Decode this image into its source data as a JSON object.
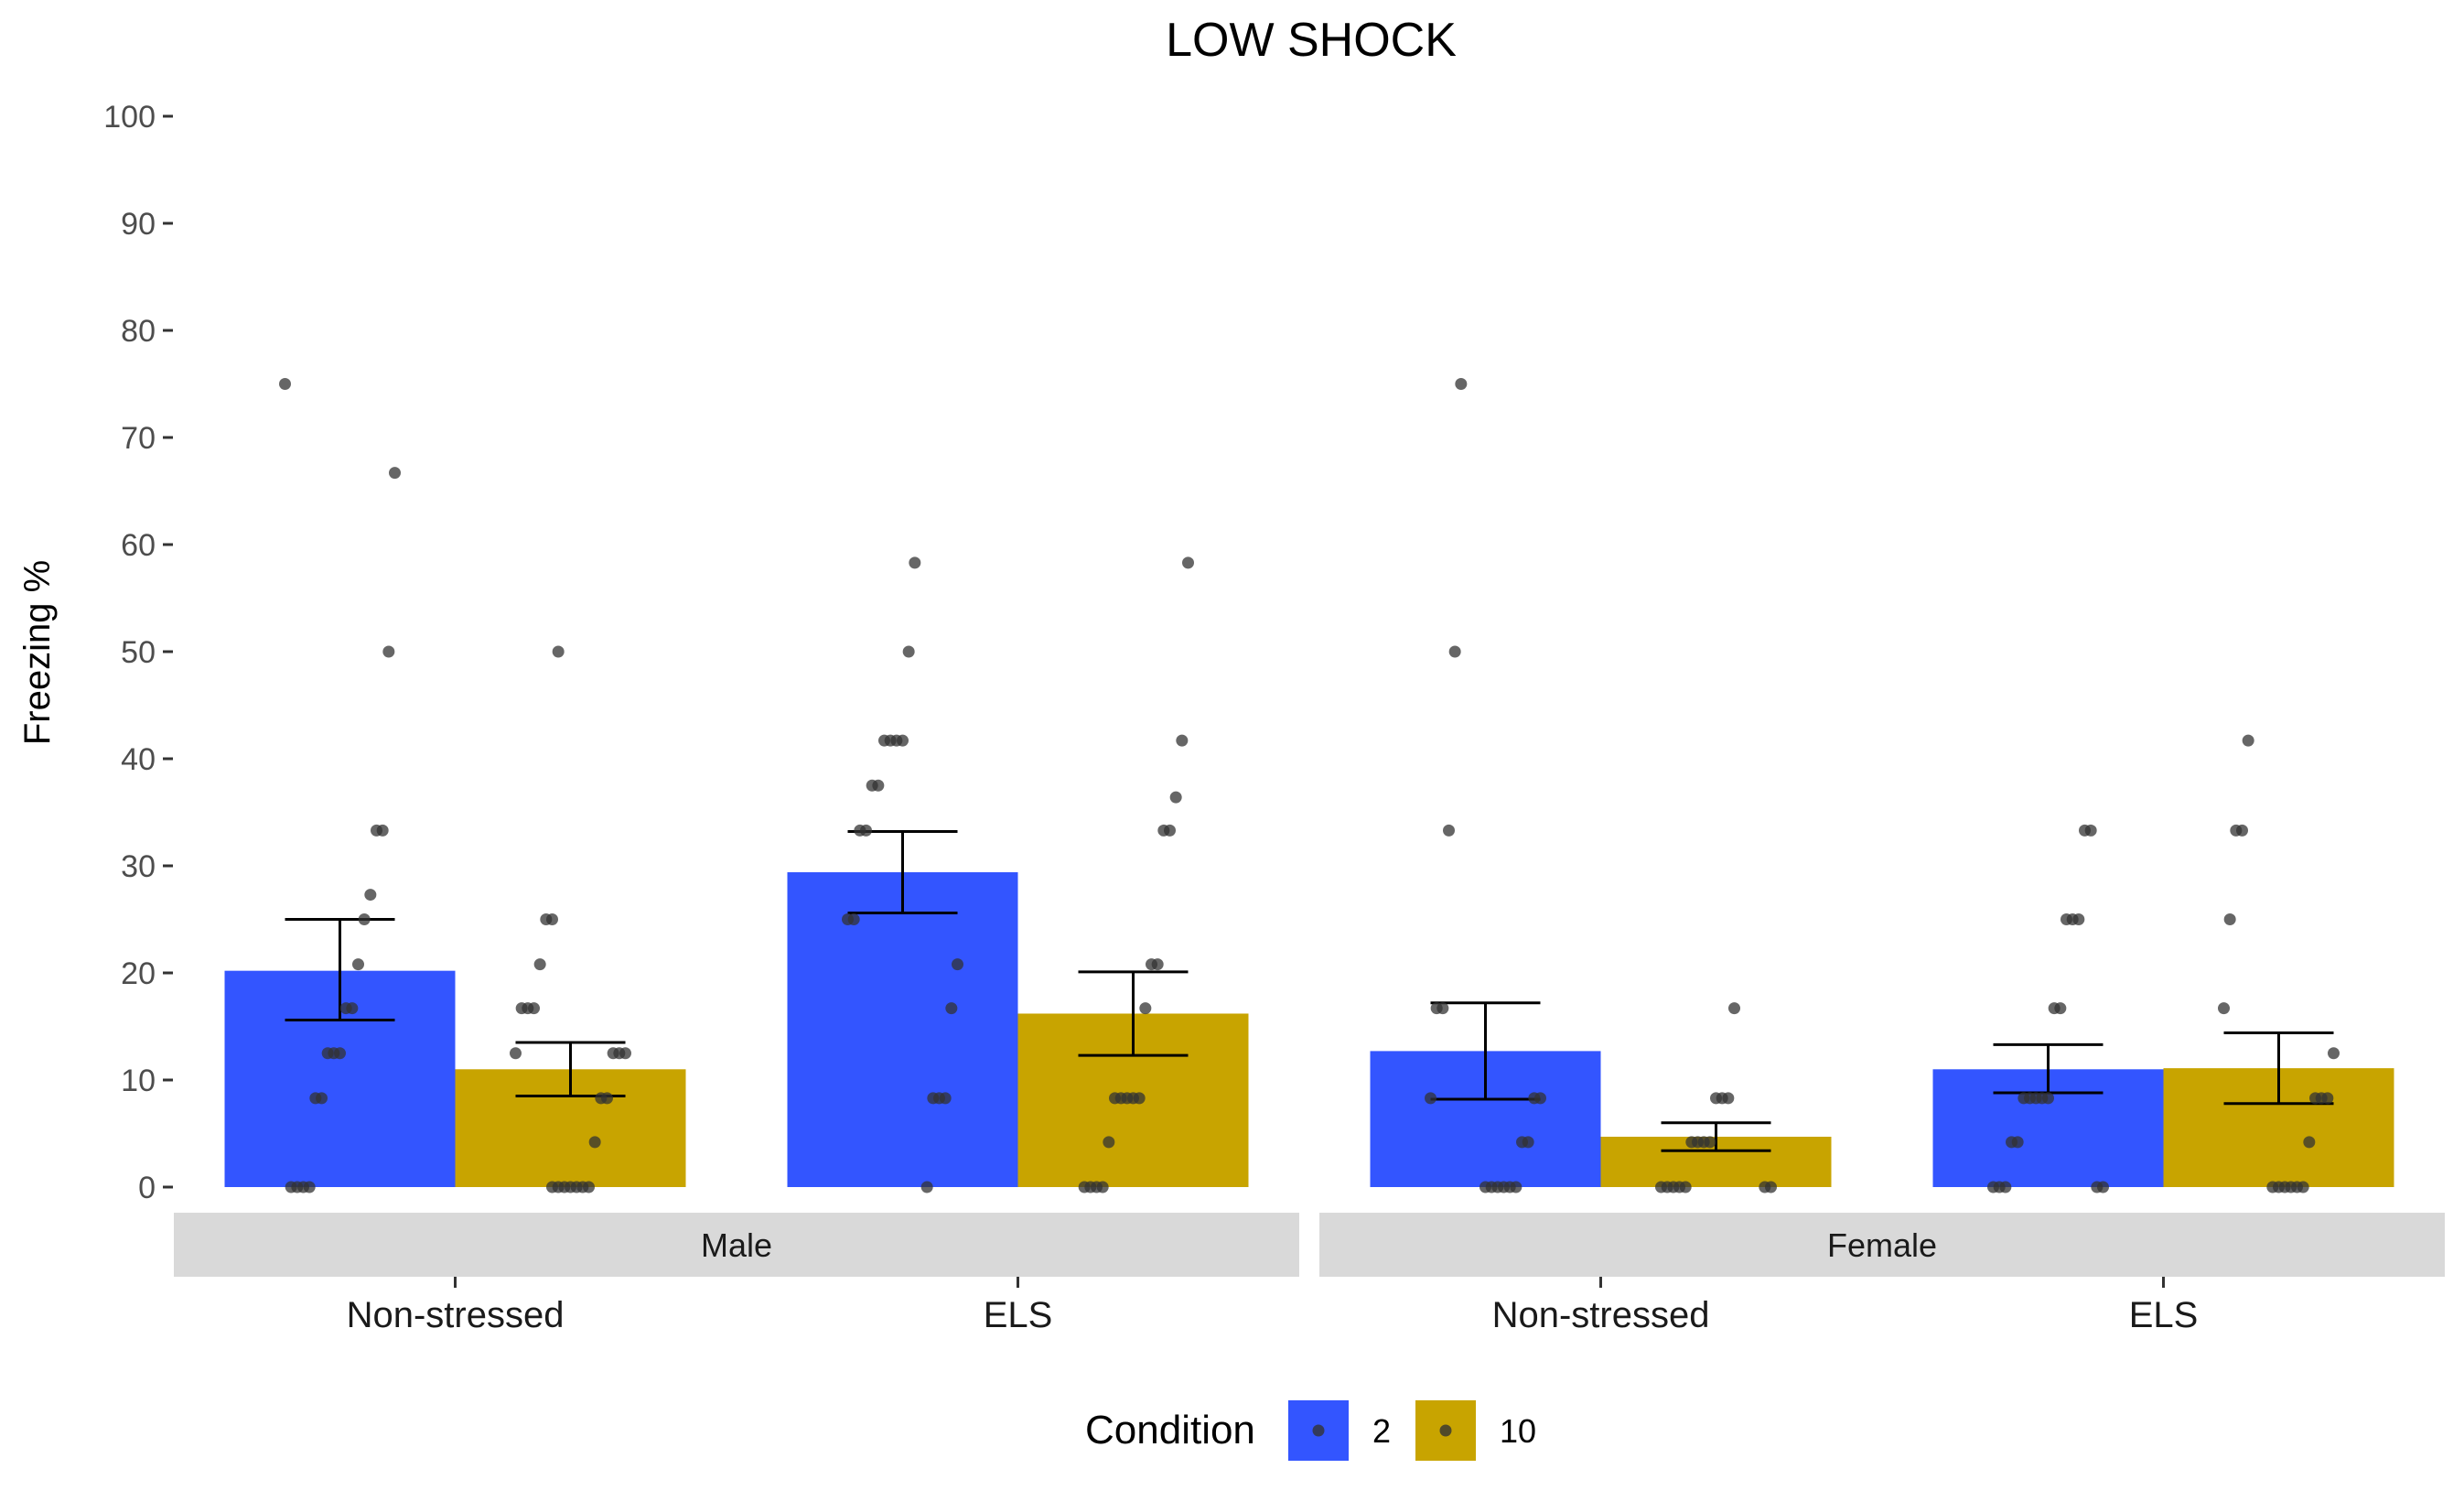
{
  "chart_data": {
    "type": "bar",
    "title": "LOW SHOCK",
    "ylabel": "Freezing %",
    "xlabel": "",
    "ylim": [
      0,
      100
    ],
    "yticks": [
      "0",
      "10",
      "20",
      "30",
      "40",
      "50",
      "60",
      "70",
      "80",
      "90",
      "100"
    ],
    "grid": false,
    "legend": {
      "title": "Condition",
      "position": "bottom",
      "items": [
        {
          "label": "2",
          "color": "#3355ff"
        },
        {
          "label": "10",
          "color": "#c8a400"
        }
      ]
    },
    "facets": [
      {
        "label": "Male",
        "categories": [
          "Non-stressed",
          "ELS"
        ],
        "series": [
          {
            "name": "2",
            "values": [
              20.2,
              29.4
            ],
            "error": [
              [
                15.6,
                25.0
              ],
              [
                25.6,
                33.2
              ]
            ],
            "points": [
              [
                75,
                66.7,
                50,
                33.3,
                33.3,
                27.3,
                25,
                20.8,
                16.7,
                16.7,
                12.5,
                12.5,
                12.5,
                8.3,
                8.3,
                0,
                0,
                0,
                0
              ],
              [
                58.3,
                50,
                41.7,
                41.7,
                41.7,
                41.7,
                37.5,
                37.5,
                33.3,
                33.3,
                25,
                25,
                20.8,
                16.7,
                8.3,
                8.3,
                8.3,
                0
              ]
            ]
          },
          {
            "name": "10",
            "values": [
              11.0,
              16.2
            ],
            "error": [
              [
                8.5,
                13.5
              ],
              [
                12.3,
                20.1
              ]
            ],
            "points": [
              [
                50,
                25,
                25,
                20.8,
                16.7,
                16.7,
                16.7,
                12.5,
                12.5,
                12.5,
                12.5,
                8.3,
                8.3,
                4.2,
                0,
                0,
                0,
                0,
                0,
                0,
                0
              ],
              [
                58.3,
                41.7,
                36.4,
                33.3,
                33.3,
                20.8,
                20.8,
                16.7,
                8.3,
                8.3,
                8.3,
                8.3,
                8.3,
                4.2,
                0,
                0,
                0,
                0
              ]
            ]
          }
        ]
      },
      {
        "label": "Female",
        "categories": [
          "Non-stressed",
          "ELS"
        ],
        "series": [
          {
            "name": "2",
            "values": [
              12.7,
              11.0
            ],
            "error": [
              [
                8.2,
                17.2
              ],
              [
                8.8,
                13.3
              ]
            ],
            "points": [
              [
                75,
                50,
                33.3,
                16.7,
                16.7,
                8.3,
                8.3,
                8.3,
                4.2,
                4.2,
                0,
                0,
                0,
                0,
                0,
                0
              ],
              [
                33.3,
                33.3,
                25,
                25,
                25,
                16.7,
                16.7,
                8.3,
                8.3,
                8.3,
                8.3,
                8.3,
                4.2,
                4.2,
                0,
                0,
                0,
                0,
                0
              ]
            ]
          },
          {
            "name": "10",
            "values": [
              4.7,
              11.1
            ],
            "error": [
              [
                3.4,
                6.0
              ],
              [
                7.8,
                14.4
              ]
            ],
            "points": [
              [
                16.7,
                8.3,
                8.3,
                8.3,
                4.2,
                4.2,
                4.2,
                4.2,
                0,
                0,
                0,
                0,
                0,
                0,
                0
              ],
              [
                41.7,
                33.3,
                33.3,
                25,
                16.7,
                12.5,
                8.3,
                8.3,
                8.3,
                4.2,
                0,
                0,
                0,
                0,
                0,
                0
              ]
            ]
          }
        ]
      }
    ]
  }
}
